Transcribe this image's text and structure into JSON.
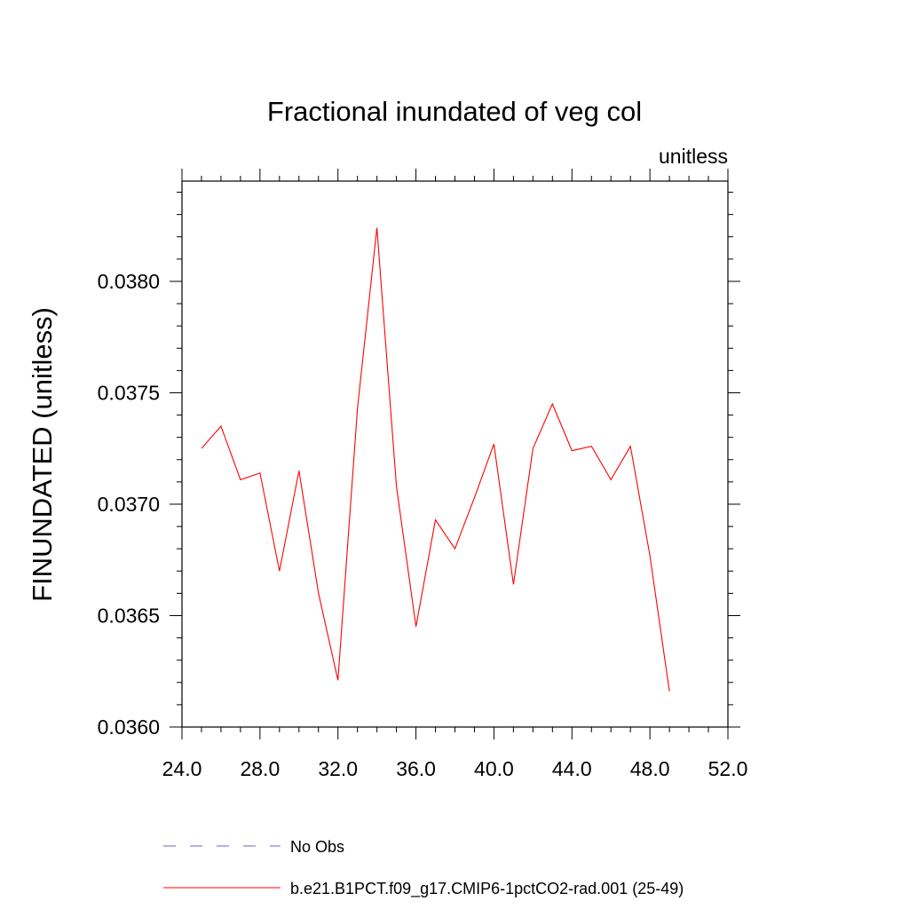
{
  "chart_data": {
    "type": "line",
    "title": "Fractional inundated of veg col",
    "units_label": "unitless",
    "ylabel": "FINUNDATED  (unitless)",
    "xlabel": "",
    "xlim": [
      24.0,
      52.0
    ],
    "ylim": [
      0.036,
      0.03845
    ],
    "x_ticks": [
      "24.0",
      "28.0",
      "32.0",
      "36.0",
      "40.0",
      "44.0",
      "48.0",
      "52.0"
    ],
    "y_ticks": [
      "0.0360",
      "0.0365",
      "0.0370",
      "0.0375",
      "0.0380"
    ],
    "x_tick_values": [
      24,
      28,
      32,
      36,
      40,
      44,
      48,
      52
    ],
    "y_tick_values": [
      0.036,
      0.0365,
      0.037,
      0.0375,
      0.038
    ],
    "grid": false,
    "legend_position": "bottom",
    "series": [
      {
        "name": "b.e21.B1PCT.f09_g17.CMIP6-1pctCO2-rad.001 (25-49)",
        "color": "#ff0000",
        "style": "solid",
        "x": [
          25,
          26,
          27,
          28,
          29,
          30,
          31,
          32,
          33,
          34,
          35,
          36,
          37,
          38,
          39,
          40,
          41,
          42,
          43,
          44,
          45,
          46,
          47,
          48,
          49
        ],
        "y": [
          0.03725,
          0.03735,
          0.03711,
          0.03714,
          0.0367,
          0.03715,
          0.0366,
          0.03621,
          0.03743,
          0.03824,
          0.03708,
          0.03645,
          0.03693,
          0.0368,
          0.03703,
          0.03727,
          0.03664,
          0.03725,
          0.03745,
          0.03724,
          0.03726,
          0.03711,
          0.03726,
          0.03677,
          0.03616
        ]
      }
    ],
    "legend": [
      {
        "label": "No Obs",
        "color": "#6666cc",
        "style": "dashed"
      },
      {
        "label": "b.e21.B1PCT.f09_g17.CMIP6-1pctCO2-rad.001 (25-49)",
        "color": "#ff0000",
        "style": "solid"
      }
    ]
  }
}
